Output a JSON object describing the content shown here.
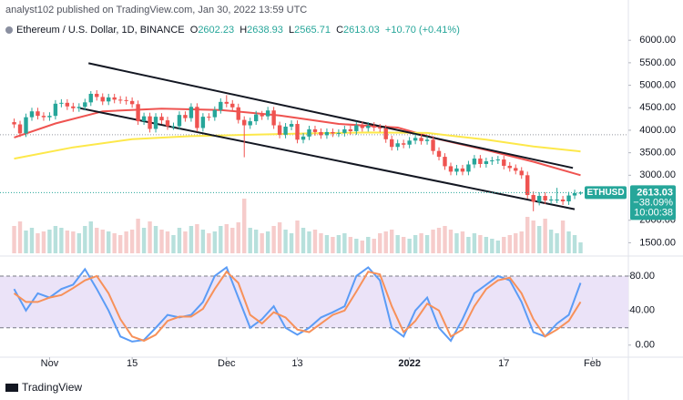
{
  "header": {
    "publisher": "analyst102 published on TradingView.com, Jan 30, 2022 13:59 UTC",
    "symbol": "Ethereum / U.S. Dollar, 1D, BINANCE",
    "ohlc_labels": [
      "O",
      "H",
      "L",
      "C"
    ],
    "change": "+10.70 (+0.41%)"
  },
  "footer": {
    "brand": "TradingView"
  },
  "chart_data": [
    {
      "type": "candlestick",
      "ticker": "ETHUSD",
      "last_change": "−38.09%",
      "countdown": "10:00:38",
      "up_color": "#26a69a",
      "down_color": "#ef5350",
      "open": [
        4180,
        4130,
        3930,
        4290,
        4420,
        4320,
        4290,
        4320,
        4590,
        4610,
        4530,
        4490,
        4520,
        4620,
        4810,
        4740,
        4640,
        4730,
        4680,
        4670,
        4650,
        4580,
        4200,
        4310,
        4030,
        4300,
        4220,
        4090,
        4090,
        4340,
        4270,
        4520,
        4050,
        4300,
        4290,
        4450,
        4630,
        4590,
        4510,
        4230,
        4110,
        4200,
        4350,
        4310,
        4440,
        4110,
        3900,
        4080,
        4140,
        3790,
        3860,
        4020,
        3960,
        3890,
        3960,
        3930,
        3940,
        4020,
        3980,
        4110,
        4050,
        4100,
        4060,
        4040,
        3800,
        3630,
        3710,
        3680,
        3770,
        3830,
        3760,
        3790,
        3540,
        3410,
        3200,
        3080,
        3150,
        3080,
        3240,
        3370,
        3250,
        3310,
        3330,
        3350,
        3210,
        3160,
        3100,
        3000,
        2560,
        2410,
        2540,
        2440,
        2460,
        2460,
        2420,
        2550,
        2602.23
      ],
      "high": [
        4260,
        4210,
        4370,
        4500,
        4500,
        4400,
        4400,
        4670,
        4690,
        4690,
        4610,
        4600,
        4700,
        4870,
        4890,
        4820,
        4810,
        4810,
        4760,
        4750,
        4730,
        4660,
        4390,
        4390,
        4380,
        4380,
        4300,
        4170,
        4420,
        4420,
        4600,
        4600,
        4380,
        4380,
        4530,
        4710,
        4780,
        4670,
        4590,
        4310,
        4280,
        4430,
        4430,
        4520,
        4520,
        4190,
        4160,
        4220,
        4220,
        3940,
        4100,
        4100,
        4040,
        4040,
        4040,
        4020,
        4100,
        4100,
        4190,
        4190,
        4180,
        4180,
        4140,
        4120,
        3880,
        3790,
        3790,
        3850,
        3910,
        3910,
        3870,
        3870,
        3620,
        3490,
        3280,
        3230,
        3230,
        3320,
        3450,
        3450,
        3390,
        3410,
        3430,
        3430,
        3290,
        3240,
        3180,
        3080,
        2640,
        2620,
        2620,
        2540,
        2720,
        2540,
        2630,
        2680,
        2638.93
      ],
      "low": [
        4050,
        3850,
        3850,
        4210,
        4240,
        4210,
        4210,
        4240,
        4510,
        4450,
        4410,
        4410,
        4440,
        4540,
        4660,
        4560,
        4560,
        4600,
        4590,
        4570,
        4500,
        4120,
        4120,
        3950,
        3950,
        4140,
        4010,
        4010,
        4010,
        4190,
        4190,
        3970,
        3970,
        4210,
        4210,
        4370,
        4510,
        4430,
        4150,
        3400,
        4030,
        4120,
        4230,
        4230,
        4030,
        3820,
        3820,
        4000,
        3710,
        3710,
        3780,
        3880,
        3810,
        3810,
        3850,
        3850,
        3860,
        3900,
        3900,
        3970,
        3970,
        3980,
        3960,
        3720,
        3550,
        3550,
        3600,
        3600,
        3690,
        3680,
        3680,
        3460,
        3330,
        3120,
        3000,
        3000,
        3000,
        3000,
        3160,
        3170,
        3170,
        3230,
        3250,
        3130,
        3080,
        3020,
        2920,
        2480,
        2200,
        2330,
        2360,
        2360,
        2380,
        2340,
        2340,
        2470,
        2565.71
      ],
      "close": [
        4130,
        3930,
        4290,
        4420,
        4320,
        4290,
        4320,
        4590,
        4610,
        4530,
        4490,
        4520,
        4620,
        4810,
        4740,
        4640,
        4730,
        4680,
        4670,
        4650,
        4580,
        4200,
        4310,
        4030,
        4300,
        4220,
        4090,
        4090,
        4340,
        4270,
        4520,
        4050,
        4300,
        4290,
        4450,
        4630,
        4590,
        4510,
        4230,
        4110,
        4200,
        4350,
        4310,
        4440,
        4110,
        3900,
        4080,
        4140,
        3790,
        3860,
        4020,
        3960,
        3890,
        3960,
        3930,
        3940,
        4020,
        3980,
        4110,
        4050,
        4100,
        4060,
        4040,
        3800,
        3630,
        3710,
        3680,
        3770,
        3830,
        3760,
        3790,
        3540,
        3410,
        3200,
        3080,
        3150,
        3080,
        3240,
        3370,
        3250,
        3310,
        3330,
        3350,
        3210,
        3160,
        3100,
        3000,
        2560,
        2410,
        2540,
        2440,
        2460,
        2460,
        2420,
        2550,
        2602.23,
        2613.03
      ],
      "volume": {
        "up_color": "#b7e0dc",
        "down_color": "#f6cccb",
        "ylim": [
          0,
          100
        ],
        "values": [
          30,
          35,
          25,
          28,
          22,
          24,
          26,
          30,
          28,
          25,
          24,
          22,
          30,
          35,
          28,
          26,
          24,
          22,
          20,
          24,
          26,
          38,
          28,
          35,
          30,
          26,
          24,
          20,
          28,
          24,
          30,
          32,
          26,
          22,
          24,
          30,
          32,
          28,
          34,
          60,
          28,
          26,
          22,
          24,
          30,
          34,
          26,
          22,
          36,
          28,
          24,
          26,
          22,
          20,
          18,
          20,
          22,
          18,
          16,
          14,
          18,
          16,
          22,
          24,
          26,
          20,
          18,
          16,
          20,
          22,
          20,
          26,
          28,
          30,
          26,
          22,
          24,
          18,
          22,
          20,
          18,
          16,
          14,
          18,
          20,
          22,
          24,
          40,
          36,
          30,
          38,
          26,
          22,
          36,
          24,
          20,
          12
        ]
      },
      "overlays": [
        {
          "color": "#ef5350",
          "x": [
            0,
            7,
            15,
            25,
            35,
            45,
            55,
            65,
            72,
            80,
            88,
            96
          ],
          "values": [
            3840,
            4150,
            4420,
            4480,
            4450,
            4330,
            4140,
            4060,
            3800,
            3560,
            3300,
            3000
          ]
        },
        {
          "color": "#fde84a",
          "x": [
            0,
            10,
            20,
            30,
            40,
            50,
            60,
            70,
            80,
            88,
            96
          ],
          "values": [
            3370,
            3620,
            3800,
            3870,
            3900,
            3930,
            3950,
            3940,
            3790,
            3640,
            3530
          ]
        }
      ],
      "trendlines": [
        {
          "color": "#131722",
          "x": [
            12.6,
            94.7
          ],
          "values": [
            5490,
            3163
          ]
        },
        {
          "color": "#131722",
          "x": [
            11.2,
            95
          ],
          "values": [
            4490,
            2245
          ]
        }
      ],
      "reference_line": 3900,
      "xlim": [
        -2.4,
        104.1
      ],
      "xticks": [
        {
          "value": 6,
          "label": "Nov"
        },
        {
          "value": 20,
          "label": "15"
        },
        {
          "value": 36,
          "label": "Dec"
        },
        {
          "value": 48,
          "label": "13"
        },
        {
          "value": 67,
          "label": "2022"
        },
        {
          "value": 83,
          "label": "17"
        },
        {
          "value": 98,
          "label": "Feb"
        }
      ],
      "ylim": [
        1265,
        6490
      ],
      "yticks": [
        {
          "value": 1500,
          "label": "1500.00"
        },
        {
          "value": 2000,
          "label": "2000.00"
        },
        {
          "value": 3000,
          "label": "3000.00"
        },
        {
          "value": 3500,
          "label": "3500.00"
        },
        {
          "value": 4000,
          "label": "4000.00"
        },
        {
          "value": 4500,
          "label": "4500.00"
        },
        {
          "value": 5000,
          "label": "5000.00"
        },
        {
          "value": 5500,
          "label": "5500.00"
        },
        {
          "value": 6000,
          "label": "6000.00"
        }
      ]
    },
    {
      "type": "line",
      "band": [
        20,
        80
      ],
      "band_color": "#ebe3f8",
      "xlim": [
        -2.4,
        104.1
      ],
      "ylim": [
        -14,
        100
      ],
      "yticks": [
        {
          "value": 0,
          "label": "0.00"
        },
        {
          "value": 40,
          "label": "40.00"
        },
        {
          "value": 80,
          "label": "80.00"
        }
      ],
      "series": [
        {
          "color": "#5b9cf6",
          "x": [
            0,
            2,
            4,
            6,
            8,
            10,
            12,
            14,
            16,
            18,
            20,
            22,
            24,
            26,
            28,
            30,
            32,
            34,
            36,
            38,
            40,
            42,
            44,
            46,
            48,
            50,
            52,
            54,
            56,
            58,
            60,
            62,
            64,
            66,
            68,
            70,
            72,
            74,
            76,
            78,
            80,
            82,
            84,
            86,
            88,
            90,
            92,
            94,
            96
          ],
          "values": [
            65,
            40,
            60,
            55,
            65,
            70,
            88,
            65,
            40,
            10,
            4,
            6,
            20,
            35,
            32,
            35,
            50,
            80,
            90,
            55,
            20,
            30,
            45,
            20,
            12,
            20,
            32,
            38,
            45,
            80,
            90,
            75,
            20,
            10,
            40,
            55,
            20,
            5,
            30,
            60,
            70,
            80,
            75,
            50,
            15,
            10,
            25,
            35,
            72
          ]
        },
        {
          "color": "#f7915a",
          "x": [
            0,
            2,
            4,
            6,
            8,
            10,
            12,
            14,
            16,
            18,
            20,
            22,
            24,
            26,
            28,
            30,
            32,
            34,
            36,
            38,
            40,
            42,
            44,
            46,
            48,
            50,
            52,
            54,
            56,
            58,
            60,
            62,
            64,
            66,
            68,
            70,
            72,
            74,
            76,
            78,
            80,
            82,
            84,
            86,
            88,
            90,
            92,
            94,
            96
          ],
          "values": [
            60,
            50,
            50,
            55,
            58,
            66,
            75,
            80,
            60,
            30,
            10,
            5,
            12,
            28,
            33,
            33,
            42,
            65,
            85,
            72,
            35,
            25,
            38,
            32,
            18,
            15,
            25,
            35,
            40,
            62,
            85,
            82,
            45,
            15,
            28,
            48,
            40,
            10,
            18,
            45,
            65,
            75,
            78,
            60,
            30,
            10,
            18,
            28,
            50
          ]
        }
      ]
    }
  ]
}
